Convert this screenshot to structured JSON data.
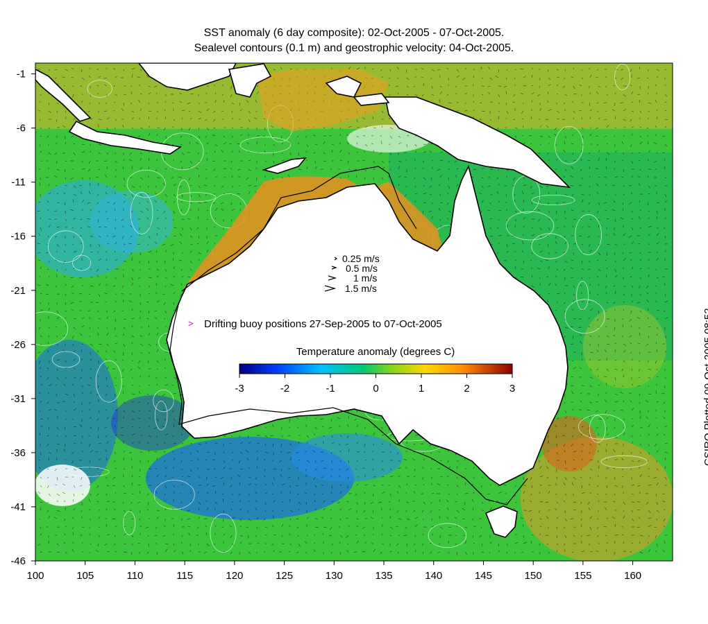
{
  "title_line1": "SST anomaly (6 day composite): 02-Oct-2005 - 07-Oct-2005.",
  "title_line2": "Sealevel contours (0.1 m) and geostrophic velocity: 04-Oct-2005.",
  "credit": "CSIRO Plotted 09-Oct-2005 08:52",
  "axes": {
    "lon_ticks": [
      "100",
      "105",
      "110",
      "115",
      "120",
      "125",
      "130",
      "135",
      "140",
      "145",
      "150",
      "155",
      "160"
    ],
    "lat_ticks": [
      "-1",
      "-6",
      "-11",
      "-16",
      "-21",
      "-26",
      "-31",
      "-36",
      "-41",
      "-46"
    ],
    "lon_range": [
      100,
      164
    ],
    "lat_range": [
      -46,
      0
    ]
  },
  "velocity_legend": [
    {
      "label": "0.25 m/s",
      "speed": 0.25
    },
    {
      "label": "0.5 m/s",
      "speed": 0.5
    },
    {
      "label": "1 m/s",
      "speed": 1
    },
    {
      "label": "1.5 m/s",
      "speed": 1.5
    }
  ],
  "buoy_legend": {
    "symbol": ">",
    "label": "Drifting buoy positions 27-Sep-2005 to 07-Oct-2005",
    "color": "#d000d0"
  },
  "colorbar": {
    "title": "Temperature anomaly (degrees C)",
    "ticks": [
      "-3",
      "-2",
      "-1",
      "0",
      "1",
      "2",
      "3"
    ],
    "range": [
      -3,
      3
    ],
    "colors": [
      "#000080",
      "#0040ff",
      "#00c0ff",
      "#00d060",
      "#9acd32",
      "#ffd700",
      "#ff8c00",
      "#8b0000"
    ]
  },
  "colors": {
    "land": "#ffffff",
    "coast": "#000000",
    "sealevel_contours": "#ffffff",
    "ocean_main": "#3cc43c",
    "warm_shelf": "#e8901e",
    "cool_south": "#1e78dc"
  }
}
